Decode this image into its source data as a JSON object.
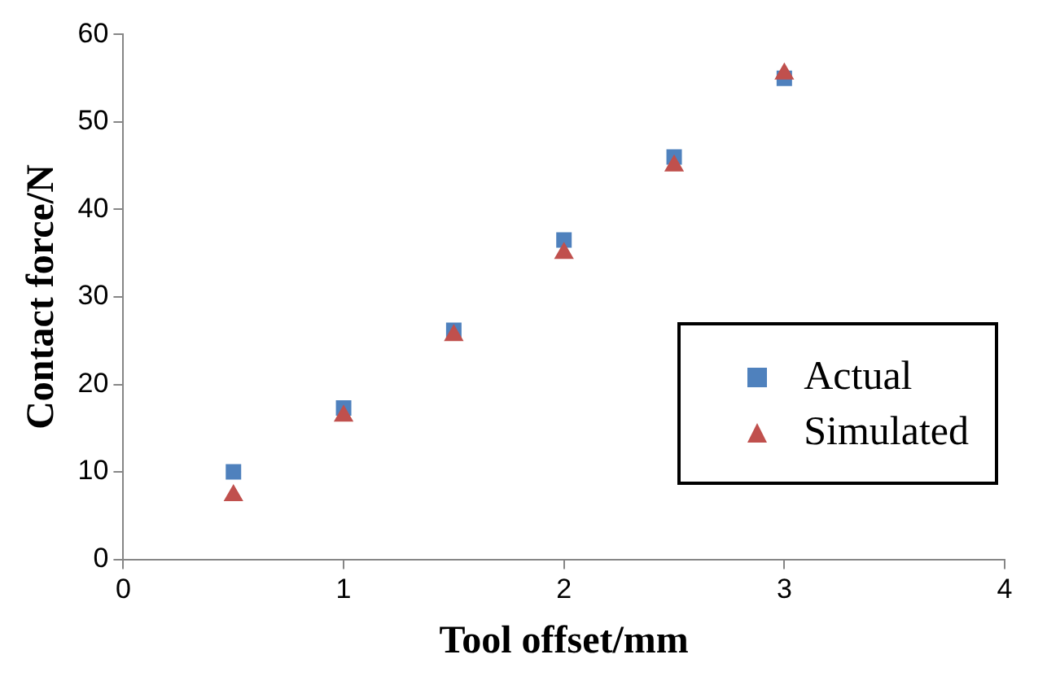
{
  "chart_data": {
    "type": "scatter",
    "xlabel": "Tool offset/mm",
    "ylabel": "Contact force/N",
    "x": [
      0.5,
      1,
      1.5,
      2,
      2.5,
      3
    ],
    "series": [
      {
        "name": "Actual",
        "color": "#4f81bd",
        "marker": "square",
        "values": [
          10,
          17.3,
          26.2,
          36.5,
          46,
          55
        ]
      },
      {
        "name": "Simulated",
        "color": "#c0504d",
        "marker": "triangle",
        "values": [
          7.3,
          16.4,
          25.6,
          35,
          45,
          55.5
        ]
      }
    ],
    "xlim": [
      0,
      4
    ],
    "xticks": [
      0,
      1,
      2,
      3,
      4
    ],
    "ylim": [
      0,
      60
    ],
    "yticks": [
      0,
      10,
      20,
      30,
      40,
      50,
      60
    ],
    "grid": false,
    "legend": "right"
  }
}
